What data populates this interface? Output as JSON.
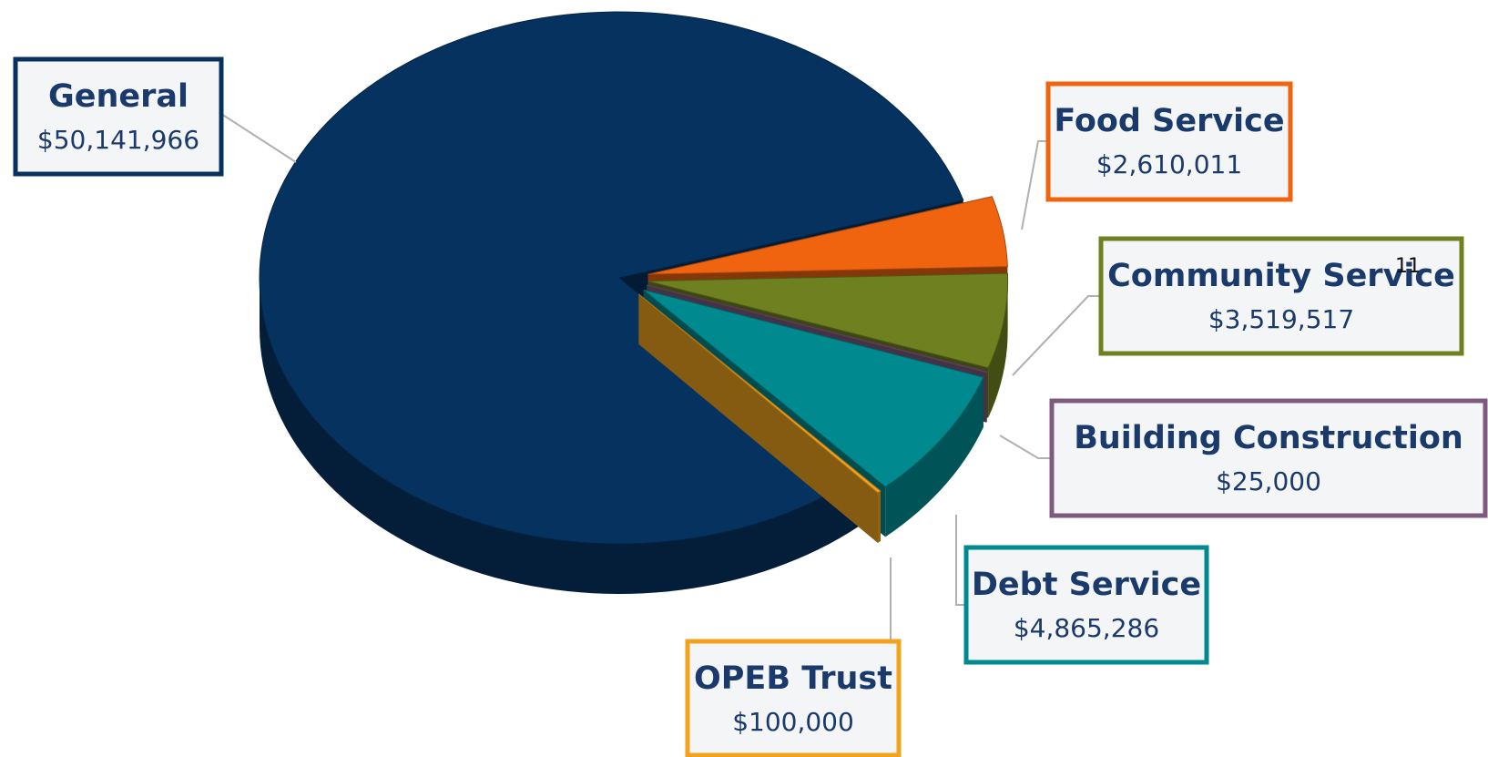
{
  "chart_data": {
    "type": "pie",
    "categories": [
      "Food Service",
      "Community Service",
      "Building Construction",
      "Debt Service",
      "OPEB Trust",
      "General"
    ],
    "values": [
      2610011,
      3519517,
      25000,
      4865286,
      100000,
      50141966
    ],
    "value_labels": [
      "$2,610,011",
      "$3,519,517",
      "$25,000",
      "$4,865,286",
      "$100,000",
      "$50,141,966"
    ],
    "colors": [
      "#f0640f",
      "#6e8020",
      "#7f5a7f",
      "#008a8f",
      "#f2a31e",
      "#06325f"
    ],
    "annotations": [
      "11"
    ]
  }
}
